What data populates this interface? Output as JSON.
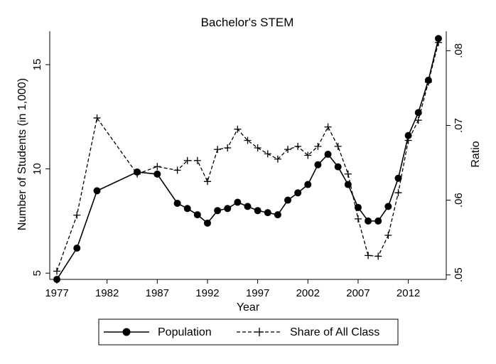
{
  "chart_data": {
    "type": "line",
    "title": "Bachelor's STEM",
    "xlabel": "Year",
    "ylabel": "Number of Students (in 1,000)",
    "y2label": "Ratio",
    "xlim": [
      1977,
      2015
    ],
    "ylim": [
      4.7,
      16.6
    ],
    "y2lim": [
      0.0494,
      0.0826
    ],
    "xticks": [
      1977,
      1982,
      1987,
      1992,
      1997,
      2002,
      2007,
      2012
    ],
    "yticks": [
      5,
      10,
      15
    ],
    "y2ticks": [
      ".05",
      ".06",
      ".07",
      ".08"
    ],
    "grid": false,
    "legend_position": "bottom",
    "title_color": "#1f3864",
    "series": [
      {
        "name": "Population",
        "axis": "left",
        "style": "solid line with filled circle markers",
        "color": "#000000",
        "x": [
          1977,
          1979,
          1981,
          1985,
          1987,
          1989,
          1990,
          1991,
          1992,
          1993,
          1994,
          1995,
          1996,
          1997,
          1998,
          1999,
          2000,
          2001,
          2002,
          2003,
          2004,
          2005,
          2006,
          2007,
          2008,
          2009,
          2010,
          2011,
          2012,
          2013,
          2014,
          2015
        ],
        "values": [
          4.7,
          6.2,
          8.95,
          9.85,
          9.75,
          8.35,
          8.1,
          7.8,
          7.4,
          8.0,
          8.1,
          8.4,
          8.2,
          8.0,
          7.9,
          7.8,
          8.5,
          8.85,
          9.25,
          10.2,
          10.7,
          10.1,
          9.25,
          8.15,
          7.5,
          7.5,
          8.2,
          9.55,
          11.6,
          12.7,
          14.25,
          16.25
        ]
      },
      {
        "name": "Share of All Class",
        "axis": "right",
        "style": "dashed line with plus markers",
        "color": "#000000",
        "x": [
          1977,
          1979,
          1981,
          1985,
          1987,
          1989,
          1990,
          1991,
          1992,
          1993,
          1994,
          1995,
          1996,
          1997,
          1998,
          1999,
          2000,
          2001,
          2002,
          2003,
          2004,
          2005,
          2006,
          2007,
          2008,
          2009,
          2010,
          2011,
          2012,
          2013,
          2014,
          2015
        ],
        "values": [
          0.0505,
          0.058,
          0.071,
          0.0635,
          0.0645,
          0.064,
          0.0653,
          0.0653,
          0.0625,
          0.0668,
          0.067,
          0.0695,
          0.068,
          0.067,
          0.0662,
          0.0655,
          0.0668,
          0.0672,
          0.066,
          0.0672,
          0.0698,
          0.0672,
          0.0635,
          0.0575,
          0.0526,
          0.0525,
          0.0553,
          0.061,
          0.068,
          0.0707,
          0.0758,
          0.0811
        ]
      }
    ]
  }
}
